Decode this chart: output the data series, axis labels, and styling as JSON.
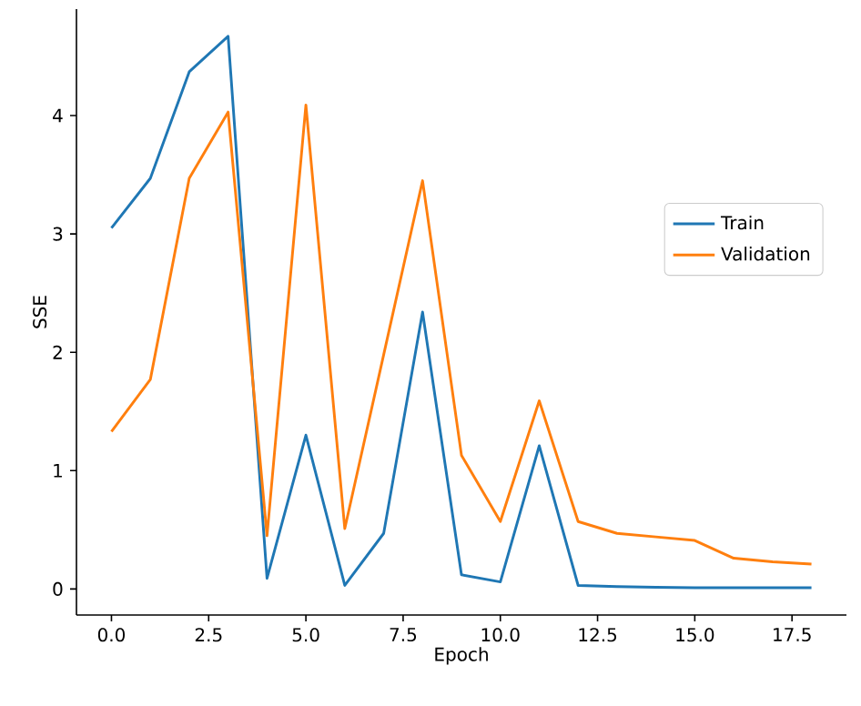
{
  "chart_data": {
    "type": "line",
    "xlabel": "Epoch",
    "ylabel": "SSE",
    "x": [
      0,
      1,
      2,
      3,
      4,
      5,
      6,
      7,
      8,
      9,
      10,
      11,
      12,
      13,
      14,
      15,
      16,
      17,
      18
    ],
    "series": [
      {
        "name": "Train",
        "color": "#1f77b4",
        "values": [
          3.05,
          3.47,
          4.37,
          4.67,
          0.09,
          1.3,
          0.03,
          0.47,
          2.34,
          0.12,
          0.06,
          1.21,
          0.03,
          0.02,
          0.015,
          0.01,
          0.01,
          0.01,
          0.01
        ]
      },
      {
        "name": "Validation",
        "color": "#ff7f0e",
        "values": [
          1.33,
          1.77,
          3.47,
          4.03,
          0.45,
          4.09,
          0.51,
          1.98,
          3.45,
          1.13,
          0.57,
          1.59,
          0.57,
          0.47,
          0.44,
          0.41,
          0.26,
          0.23,
          0.21
        ]
      }
    ],
    "xlim": [
      -0.9,
      18.9
    ],
    "ylim": [
      -0.22,
      4.9
    ],
    "xticks": [
      {
        "value": 0,
        "label": "0.0"
      },
      {
        "value": 2.5,
        "label": "2.5"
      },
      {
        "value": 5,
        "label": "5.0"
      },
      {
        "value": 7.5,
        "label": "7.5"
      },
      {
        "value": 10,
        "label": "10.0"
      },
      {
        "value": 12.5,
        "label": "12.5"
      },
      {
        "value": 15,
        "label": "15.0"
      },
      {
        "value": 17.5,
        "label": "17.5"
      }
    ],
    "yticks": [
      0,
      1,
      2,
      3,
      4
    ],
    "legend": "right",
    "grid": false,
    "marker": "none",
    "line_style": "solid"
  }
}
